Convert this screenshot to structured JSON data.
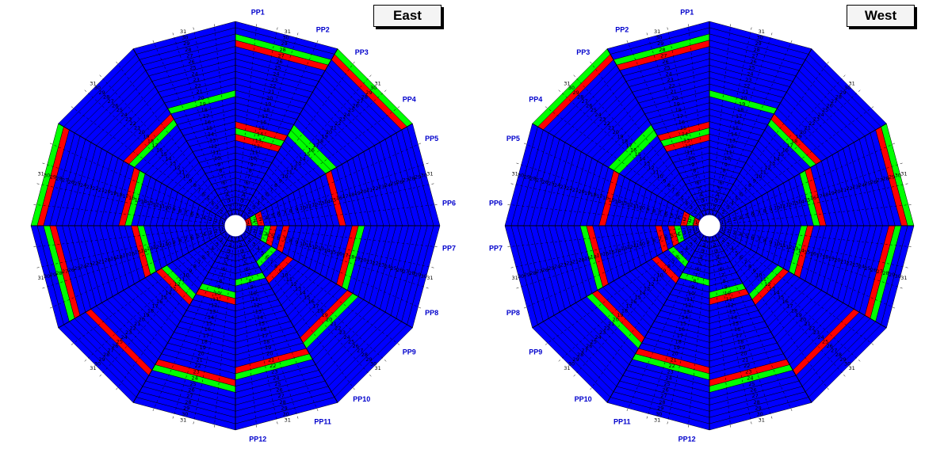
{
  "colors": {
    "normal": "#0000ff",
    "red": "#ff0000",
    "green": "#00ff00",
    "cell_text": "#000000",
    "label_text": "#0000cc",
    "edge": "#000000"
  },
  "footer_text": "",
  "chart_data": [
    {
      "type": "heatmap",
      "title": "East",
      "rows": 31,
      "sectors": 12,
      "subsectors": 5,
      "direction": "clockwise",
      "pp_labels": [
        "PP1",
        "PP2",
        "PP3",
        "PP4",
        "PP5",
        "PP6",
        "PP7",
        "PP8",
        "PP9",
        "PP10",
        "PP11",
        "PP12"
      ],
      "red_cells": [
        {
          "sector": 1,
          "row": 28
        },
        {
          "sector": 2,
          "row": 30
        },
        {
          "sector": 1,
          "row": 15
        },
        {
          "sector": 1,
          "row": 13
        },
        {
          "sector": 3,
          "row": 16
        },
        {
          "sector": 3,
          "row": 3
        },
        {
          "sector": 4,
          "row": 18
        },
        {
          "sector": 4,
          "row": 5
        },
        {
          "sector": 4,
          "row": 7
        },
        {
          "sector": 5,
          "row": 20
        },
        {
          "sector": 5,
          "row": 9
        },
        {
          "sector": 6,
          "row": 22
        },
        {
          "sector": 7,
          "row": 24
        },
        {
          "sector": 7,
          "row": 11
        },
        {
          "sector": 8,
          "row": 26
        },
        {
          "sector": 8,
          "row": 13
        },
        {
          "sector": 9,
          "row": 28
        },
        {
          "sector": 9,
          "row": 15
        },
        {
          "sector": 10,
          "row": 30
        },
        {
          "sector": 10,
          "row": 17
        },
        {
          "sector": 11,
          "row": 19
        },
        {
          "sector": 3,
          "row": 1
        }
      ],
      "green_cells": [
        {
          "sector": 1,
          "row": 29
        },
        {
          "sector": 2,
          "row": 31
        },
        {
          "sector": 1,
          "row": 14
        },
        {
          "sector": 2,
          "row": 16
        },
        {
          "sector": 2,
          "row": 17
        },
        {
          "sector": 3,
          "row": 2
        },
        {
          "sector": 4,
          "row": 19
        },
        {
          "sector": 4,
          "row": 4
        },
        {
          "sector": 5,
          "row": 21
        },
        {
          "sector": 5,
          "row": 6
        },
        {
          "sector": 6,
          "row": 23
        },
        {
          "sector": 6,
          "row": 8
        },
        {
          "sector": 7,
          "row": 25
        },
        {
          "sector": 7,
          "row": 10
        },
        {
          "sector": 8,
          "row": 12
        },
        {
          "sector": 9,
          "row": 29
        },
        {
          "sector": 9,
          "row": 14
        },
        {
          "sector": 10,
          "row": 31
        },
        {
          "sector": 10,
          "row": 16
        },
        {
          "sector": 11,
          "row": 18
        },
        {
          "sector": 12,
          "row": 20
        }
      ]
    },
    {
      "type": "heatmap",
      "title": "West",
      "rows": 31,
      "sectors": 12,
      "subsectors": 5,
      "direction": "counterclockwise",
      "pp_labels": [
        "PP1",
        "PP2",
        "PP3",
        "PP4",
        "PP5",
        "PP6",
        "PP7",
        "PP8",
        "PP9",
        "PP10",
        "PP11",
        "PP12"
      ],
      "red_cells": [
        {
          "sector": 1,
          "row": 28
        },
        {
          "sector": 2,
          "row": 30
        },
        {
          "sector": 1,
          "row": 15
        },
        {
          "sector": 1,
          "row": 13
        },
        {
          "sector": 3,
          "row": 16
        },
        {
          "sector": 3,
          "row": 3
        },
        {
          "sector": 4,
          "row": 18
        },
        {
          "sector": 4,
          "row": 5
        },
        {
          "sector": 4,
          "row": 7
        },
        {
          "sector": 5,
          "row": 20
        },
        {
          "sector": 5,
          "row": 9
        },
        {
          "sector": 6,
          "row": 22
        },
        {
          "sector": 7,
          "row": 24
        },
        {
          "sector": 7,
          "row": 11
        },
        {
          "sector": 8,
          "row": 26
        },
        {
          "sector": 8,
          "row": 13
        },
        {
          "sector": 9,
          "row": 28
        },
        {
          "sector": 9,
          "row": 15
        },
        {
          "sector": 10,
          "row": 30
        },
        {
          "sector": 10,
          "row": 17
        },
        {
          "sector": 11,
          "row": 19
        },
        {
          "sector": 3,
          "row": 1
        }
      ],
      "green_cells": [
        {
          "sector": 1,
          "row": 29
        },
        {
          "sector": 2,
          "row": 31
        },
        {
          "sector": 1,
          "row": 14
        },
        {
          "sector": 2,
          "row": 16
        },
        {
          "sector": 2,
          "row": 17
        },
        {
          "sector": 3,
          "row": 2
        },
        {
          "sector": 4,
          "row": 19
        },
        {
          "sector": 4,
          "row": 4
        },
        {
          "sector": 5,
          "row": 21
        },
        {
          "sector": 5,
          "row": 6
        },
        {
          "sector": 6,
          "row": 23
        },
        {
          "sector": 6,
          "row": 8
        },
        {
          "sector": 7,
          "row": 25
        },
        {
          "sector": 7,
          "row": 10
        },
        {
          "sector": 8,
          "row": 12
        },
        {
          "sector": 9,
          "row": 29
        },
        {
          "sector": 9,
          "row": 14
        },
        {
          "sector": 10,
          "row": 31
        },
        {
          "sector": 10,
          "row": 16
        },
        {
          "sector": 11,
          "row": 18
        },
        {
          "sector": 12,
          "row": 20
        }
      ]
    }
  ]
}
